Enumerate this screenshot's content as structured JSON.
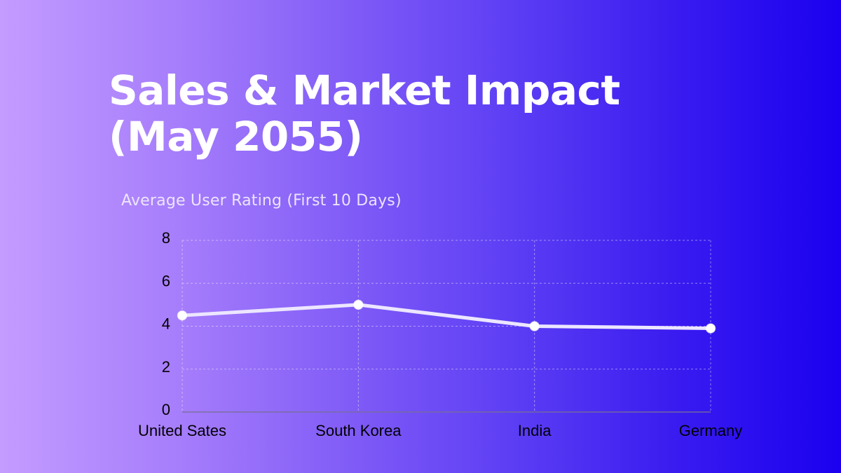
{
  "slide": {
    "title_line1": "Sales & Market Impact",
    "title_line2": "(May 2055)",
    "background_gradient": [
      "#c49cff",
      "#6e4ef6",
      "#1a00ef"
    ]
  },
  "chart_data": {
    "type": "line",
    "title": "Average User Rating (First 10 Days)",
    "xlabel": "",
    "ylabel": "",
    "categories": [
      "United Sates",
      "South Korea",
      "India",
      "Germany"
    ],
    "series": [
      {
        "name": "Average User Rating",
        "values": [
          4.5,
          5.0,
          4.0,
          3.9
        ],
        "color": "#ece6ff",
        "marker_color": "#ffffff"
      }
    ],
    "ylim": [
      0,
      8
    ],
    "yticks": [
      0,
      2,
      4,
      6,
      8
    ],
    "grid": true,
    "grid_style": "dotted",
    "legend": "none"
  }
}
